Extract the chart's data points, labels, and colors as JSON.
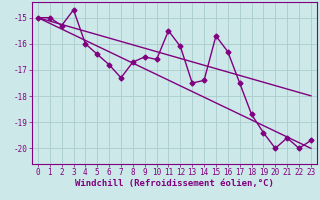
{
  "x": [
    0,
    1,
    2,
    3,
    4,
    5,
    6,
    7,
    8,
    9,
    10,
    11,
    12,
    13,
    14,
    15,
    16,
    17,
    18,
    19,
    20,
    21,
    22,
    23
  ],
  "windchill": [
    -15.0,
    -15.0,
    -15.3,
    -14.7,
    -16.0,
    -16.4,
    -16.8,
    -17.3,
    -16.7,
    -16.5,
    -16.6,
    -15.5,
    -16.1,
    -17.5,
    -17.4,
    -15.7,
    -16.3,
    -17.5,
    -18.7,
    -19.4,
    -20.0,
    -19.6,
    -20.0,
    -19.7
  ],
  "trend1": [
    -15.0,
    -15.217,
    -15.435,
    -15.652,
    -15.87,
    -16.087,
    -16.304,
    -16.522,
    -16.739,
    -16.957,
    -17.174,
    -17.391,
    -17.609,
    -17.826,
    -18.043,
    -18.261,
    -18.478,
    -18.696,
    -18.913,
    -19.13,
    -19.348,
    -19.565,
    -19.783,
    -20.0
  ],
  "trend2": [
    -15.0,
    -15.13,
    -15.26,
    -15.39,
    -15.52,
    -15.65,
    -15.78,
    -15.91,
    -16.04,
    -16.17,
    -16.3,
    -16.43,
    -16.56,
    -16.69,
    -16.82,
    -16.95,
    -17.08,
    -17.21,
    -17.34,
    -17.47,
    -17.6,
    -17.73,
    -17.86,
    -17.99
  ],
  "line_color": "#800080",
  "bg_color": "#cce8e8",
  "grid_color": "#aacccc",
  "xlabel": "Windchill (Refroidissement éolien,°C)",
  "ylim": [
    -20.6,
    -14.4
  ],
  "xlim": [
    -0.5,
    23.5
  ],
  "yticks": [
    -20,
    -19,
    -18,
    -17,
    -16,
    -15
  ],
  "xticks": [
    0,
    1,
    2,
    3,
    4,
    5,
    6,
    7,
    8,
    9,
    10,
    11,
    12,
    13,
    14,
    15,
    16,
    17,
    18,
    19,
    20,
    21,
    22,
    23
  ],
  "marker": "D",
  "markersize": 2.5,
  "linewidth": 1.0,
  "xlabel_fontsize": 6.5,
  "tick_fontsize": 5.5,
  "tick_color": "#800080",
  "axis_color": "#800080"
}
